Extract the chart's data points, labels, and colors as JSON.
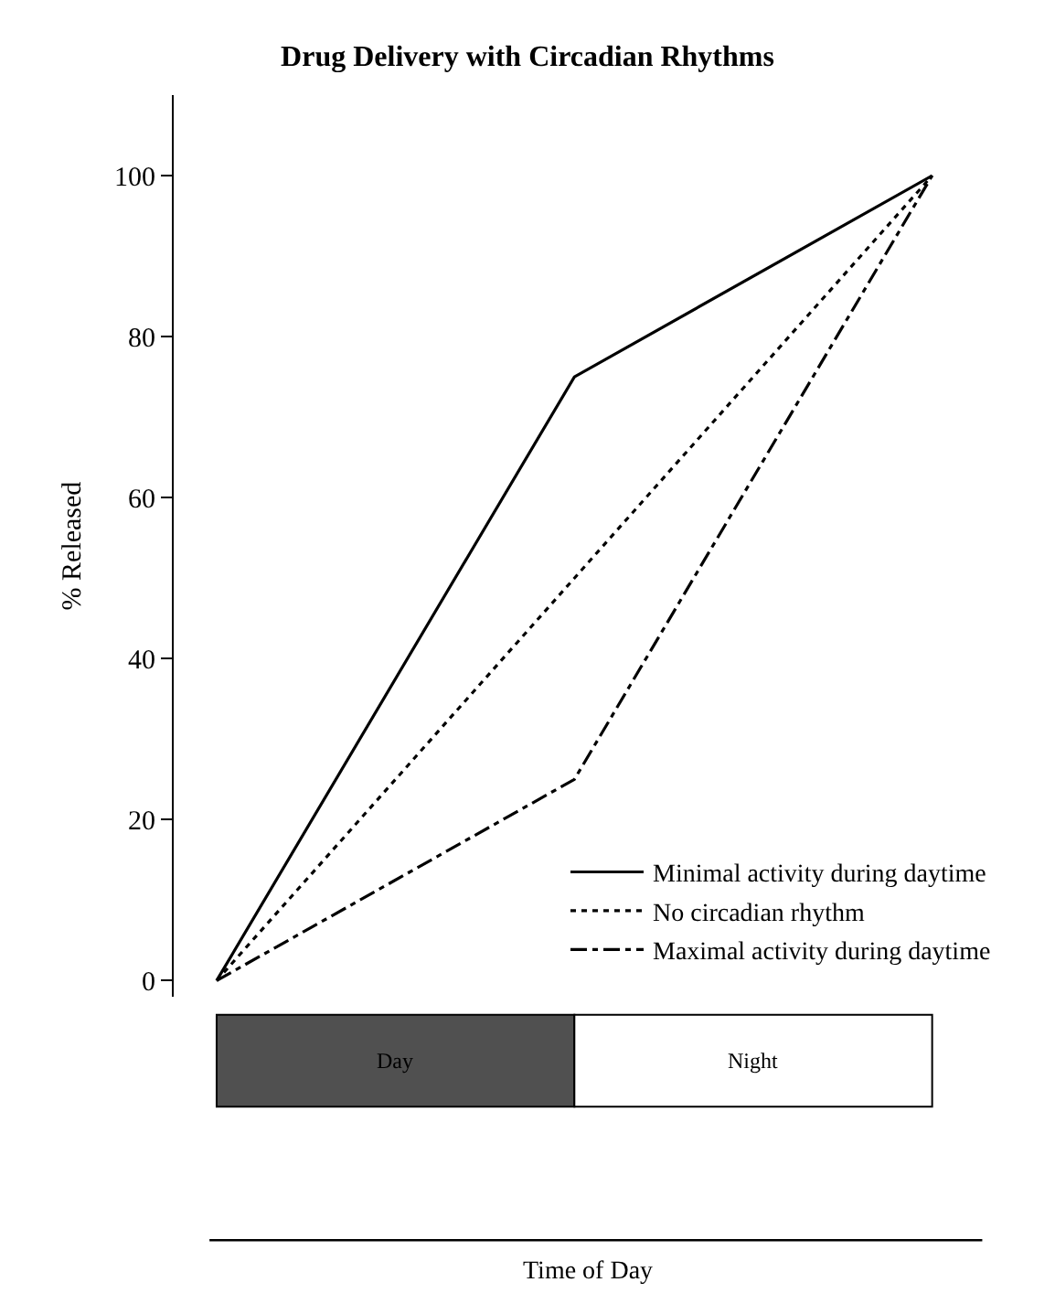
{
  "chart_data": {
    "type": "line",
    "title": "Drug Delivery with Circadian Rhythms",
    "ylabel": "% Released",
    "annotations": [
      "Day",
      "Night",
      "Time of Day"
    ],
    "categories": [
      null,
      null,
      null
    ],
    "series": [
      {
        "name": "Minimal activity during daytime",
        "color": "#000000",
        "line_style": "solid",
        "values": [
          0,
          75,
          100
        ]
      },
      {
        "name": "No circadian rhythm",
        "color": "#000000",
        "line_style": "dotted",
        "values": [
          0,
          50,
          100
        ]
      },
      {
        "name": "Maximal activity during daytime",
        "color": "#000000",
        "line_style": "dashdot",
        "values": [
          0,
          25,
          100
        ]
      }
    ],
    "ylim": [
      -2,
      110
    ],
    "yticks": [
      0,
      20,
      40,
      60,
      80,
      100
    ],
    "legend": "bottom right",
    "marker": "none",
    "tick_labels": "y"
  }
}
